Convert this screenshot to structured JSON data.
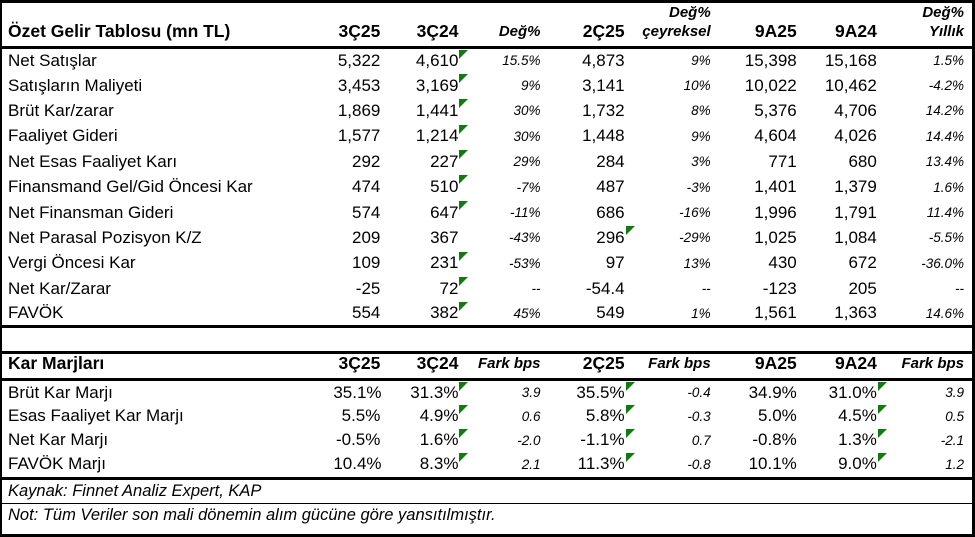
{
  "income": {
    "title": "Özet Gelir Tablosu (mn TL)",
    "columns": [
      {
        "label": "3Ç25"
      },
      {
        "label": "3Ç24"
      },
      {
        "label": "Değ%"
      },
      {
        "label": "2Ç25"
      },
      {
        "top": "Değ%",
        "label": "çeyreksel"
      },
      {
        "label": "9A25"
      },
      {
        "label": "9A24"
      },
      {
        "top": "Değ%",
        "label": "Yıllık"
      }
    ],
    "rows": [
      {
        "label": "Net Satışlar",
        "values": [
          "5,322",
          "4,610",
          "15.5%",
          "4,873",
          "9%",
          "15,398",
          "15,168",
          "1.5%"
        ],
        "flags": [
          1
        ]
      },
      {
        "label": "Satışların Maliyeti",
        "values": [
          "3,453",
          "3,169",
          "9%",
          "3,141",
          "10%",
          "10,022",
          "10,462",
          "-4.2%"
        ],
        "flags": [
          1
        ]
      },
      {
        "label": "Brüt Kar/zarar",
        "values": [
          "1,869",
          "1,441",
          "30%",
          "1,732",
          "8%",
          "5,376",
          "4,706",
          "14.2%"
        ],
        "flags": [
          1
        ]
      },
      {
        "label": "Faaliyet Gideri",
        "values": [
          "1,577",
          "1,214",
          "30%",
          "1,448",
          "9%",
          "4,604",
          "4,026",
          "14.4%"
        ],
        "flags": [
          1
        ]
      },
      {
        "label": "Net Esas Faaliyet Karı",
        "values": [
          "292",
          "227",
          "29%",
          "284",
          "3%",
          "771",
          "680",
          "13.4%"
        ],
        "flags": [
          1
        ]
      },
      {
        "label": "Finansmand Gel/Gid Öncesi Kar",
        "values": [
          "474",
          "510",
          "-7%",
          "487",
          "-3%",
          "1,401",
          "1,379",
          "1.6%"
        ],
        "flags": [
          1
        ]
      },
      {
        "label": "Net Finansman Gideri",
        "values": [
          "574",
          "647",
          "-11%",
          "686",
          "-16%",
          "1,996",
          "1,791",
          "11.4%"
        ],
        "flags": [
          1
        ]
      },
      {
        "label": "Net Parasal Pozisyon K/Z",
        "values": [
          "209",
          "367",
          "-43%",
          "296",
          "-29%",
          "1,025",
          "1,084",
          "-5.5%"
        ],
        "flags": [
          3
        ]
      },
      {
        "label": "Vergi Öncesi Kar",
        "values": [
          "109",
          "231",
          "-53%",
          "97",
          "13%",
          "430",
          "672",
          "-36.0%"
        ],
        "flags": [
          1
        ]
      },
      {
        "label": "Net Kar/Zarar",
        "values": [
          "-25",
          "72",
          "--",
          "-54.4",
          "--",
          "-123",
          "205",
          "--"
        ],
        "flags": [
          1
        ]
      },
      {
        "label": "FAVÖK",
        "values": [
          "554",
          "382",
          "45%",
          "549",
          "1%",
          "1,561",
          "1,363",
          "14.6%"
        ],
        "flags": [
          1
        ]
      }
    ]
  },
  "margins": {
    "title": "Kar Marjları",
    "columns": [
      {
        "label": "3Ç25"
      },
      {
        "label": "3Ç24"
      },
      {
        "label": "Fark bps"
      },
      {
        "label": "2Ç25"
      },
      {
        "label": "Fark bps"
      },
      {
        "label": "9A25"
      },
      {
        "label": "9A24"
      },
      {
        "label": "Fark bps"
      }
    ],
    "rows": [
      {
        "label": "Brüt Kar Marjı",
        "values": [
          "35.1%",
          "31.3%",
          "3.9",
          "35.5%",
          "-0.4",
          "34.9%",
          "31.0%",
          "3.9"
        ],
        "flags": [
          1,
          3,
          6
        ]
      },
      {
        "label": "Esas Faaliyet Kar Marjı",
        "values": [
          "5.5%",
          "4.9%",
          "0.6",
          "5.8%",
          "-0.3",
          "5.0%",
          "4.5%",
          "0.5"
        ],
        "flags": [
          1,
          3,
          6
        ]
      },
      {
        "label": "Net Kar Marjı",
        "values": [
          "-0.5%",
          "1.6%",
          "-2.0",
          "-1.1%",
          "0.7",
          "-0.8%",
          "1.3%",
          "-2.1"
        ],
        "flags": [
          1,
          3,
          6
        ]
      },
      {
        "label": "FAVÖK Marjı",
        "values": [
          "10.4%",
          "8.3%",
          "2.1",
          "11.3%",
          "-0.8",
          "10.1%",
          "9.0%",
          "1.2"
        ],
        "flags": [
          1,
          3,
          6
        ]
      }
    ]
  },
  "footer": {
    "source": "Kaynak: Finnet Analiz Expert, KAP",
    "note": "Not: Tüm Veriler son mali dönemin alım gücüne göre yansıtılmıştır."
  },
  "colors": {
    "flag_green": "#107c10",
    "border_black": "#000000"
  }
}
